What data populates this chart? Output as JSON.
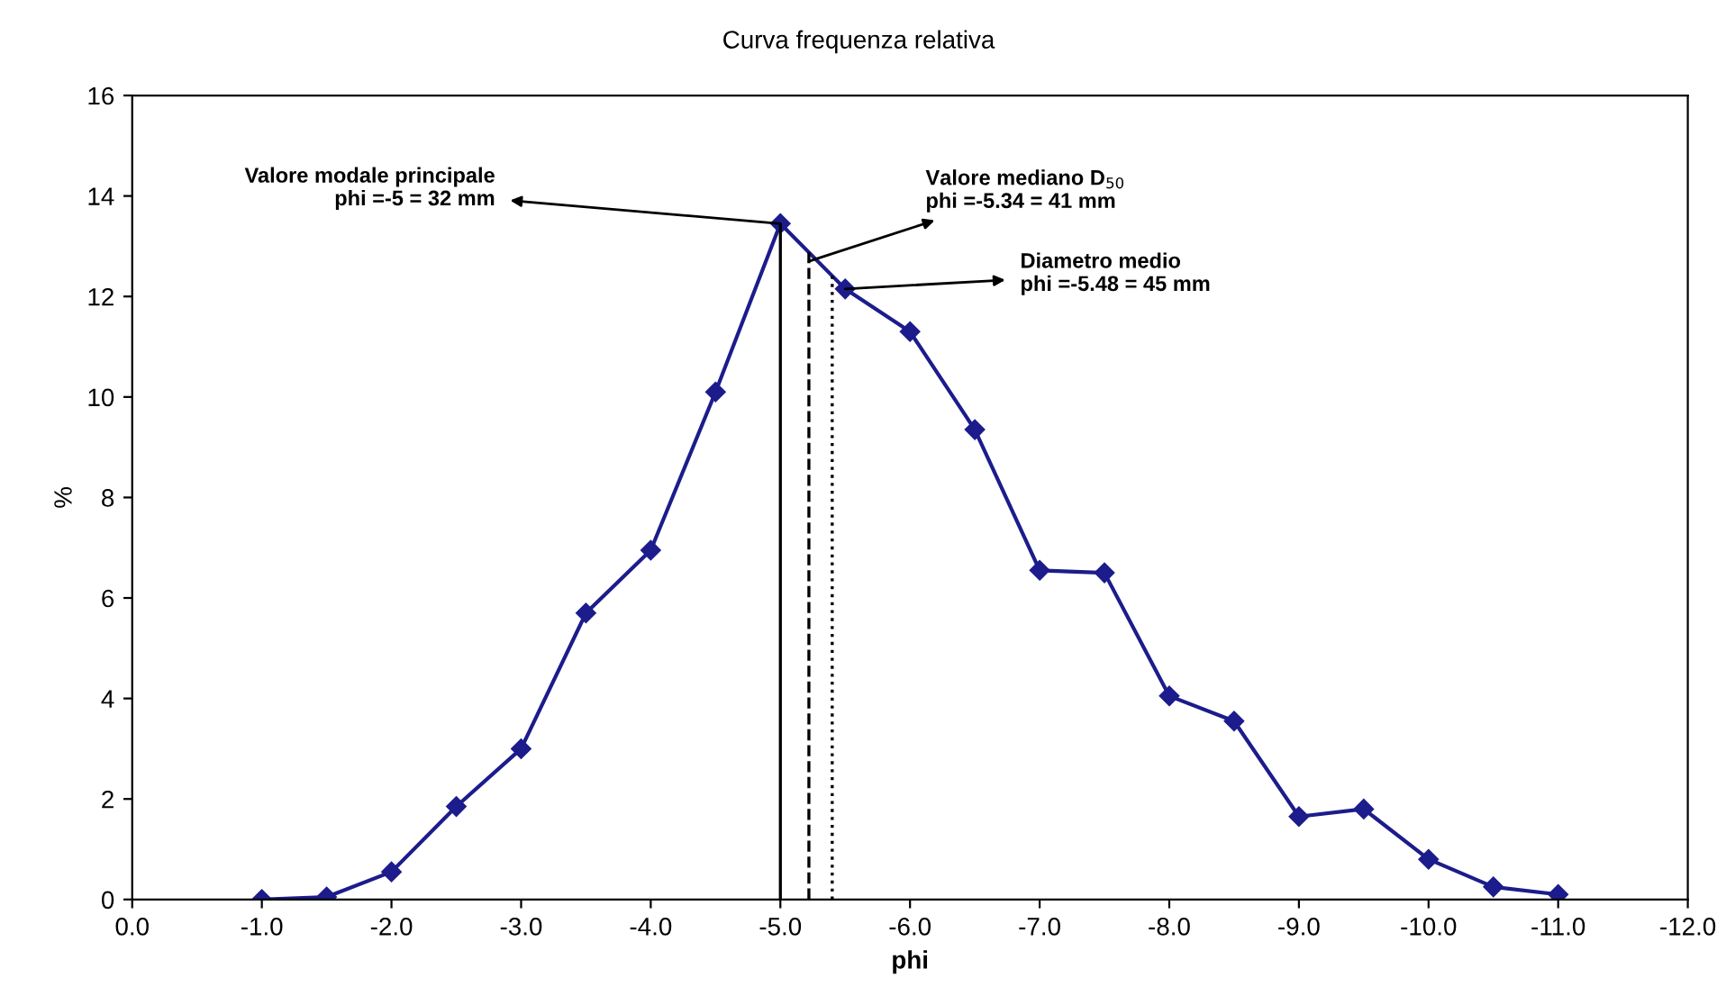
{
  "chart_data": {
    "type": "line",
    "title": "Curva frequenza relativa",
    "xlabel": "phi",
    "ylabel": "%",
    "x": [
      -1,
      -1.5,
      -2,
      -2.5,
      -3,
      -3.5,
      -4,
      -4.5,
      -5,
      -5.5,
      -6,
      -6.5,
      -7,
      -7.5,
      -8,
      -8.5,
      -9,
      -9.5,
      -10,
      -10.5,
      -11
    ],
    "series": [
      {
        "color": "#1c1c8c",
        "marker": "diamond",
        "line_style": "solid",
        "values": [
          0,
          0.05,
          0.55,
          1.85,
          3.0,
          5.7,
          6.95,
          10.1,
          13.45,
          12.15,
          11.3,
          9.35,
          6.55,
          6.5,
          4.05,
          3.55,
          1.65,
          1.8,
          0.8,
          0.25,
          0.1
        ]
      }
    ],
    "ref_lines": [
      {
        "axis": "x",
        "value": -5,
        "color": "#000000",
        "line_style": "solid"
      },
      {
        "axis": "x",
        "value": -5.22,
        "color": "#000000",
        "line_style": "dashed"
      },
      {
        "axis": "x",
        "value": -5.4,
        "color": "#000000",
        "line_style": "dotted"
      }
    ],
    "annotations": [
      {
        "text": "Valore modale principale\nphi =-5 = 32 mm",
        "x": -5,
        "y": 13.45
      },
      {
        "text": "Valore mediano D$_{50}$\nphi =-5.34 = 41 mm",
        "x": -5.22,
        "y": 12.7
      },
      {
        "text": "Diametro medio\nphi =-5.48 = 45 mm",
        "x": -5.5,
        "y": 12.15
      }
    ],
    "xlim": [
      0,
      -12
    ],
    "xticks": [
      {
        "value": 0,
        "label": "0.0"
      },
      {
        "value": -1,
        "label": "-1.0"
      },
      {
        "value": -2,
        "label": "-2.0"
      },
      {
        "value": -3,
        "label": "-3.0"
      },
      {
        "value": -4,
        "label": "-4.0"
      },
      {
        "value": -5,
        "label": "-5.0"
      },
      {
        "value": -6,
        "label": "-6.0"
      },
      {
        "value": -7,
        "label": "-7.0"
      },
      {
        "value": -8,
        "label": "-8.0"
      },
      {
        "value": -9,
        "label": "-9.0"
      },
      {
        "value": -10,
        "label": "-10.0"
      },
      {
        "value": -11,
        "label": "-11.0"
      },
      {
        "value": -12,
        "label": "-12.0"
      }
    ],
    "ylim": [
      0,
      16
    ],
    "yticks": [
      0,
      2,
      4,
      6,
      8,
      10,
      12,
      14,
      16
    ],
    "grid": false,
    "legend": false
  }
}
